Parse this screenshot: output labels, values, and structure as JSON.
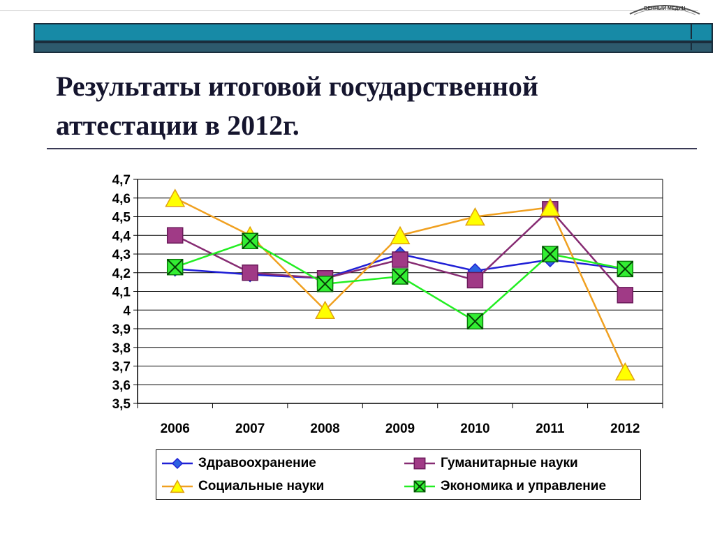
{
  "slide": {
    "title": "Результаты итоговой государственной\nаттестации в 2012г.",
    "logo_text": "ВЕННЫЙ МЕДИЦ"
  },
  "colors": {
    "banner_upper": "#178aa6",
    "banner_lower": "#2d5a6d",
    "title": "#15152e"
  },
  "chart_data": {
    "type": "line",
    "title": "",
    "xlabel": "",
    "ylabel": "",
    "categories": [
      "2006",
      "2007",
      "2008",
      "2009",
      "2010",
      "2011",
      "2012"
    ],
    "ylim": [
      3.5,
      4.7
    ],
    "ytick_step": 0.1,
    "yticks": [
      "3,5",
      "3,6",
      "3,7",
      "3,8",
      "3,9",
      "4",
      "4,1",
      "4,2",
      "4,3",
      "4,4",
      "4,5",
      "4,6",
      "4,7"
    ],
    "grid": true,
    "legend_position": "bottom",
    "series": [
      {
        "name": "Здравоохранение",
        "values": [
          4.22,
          4.19,
          4.17,
          4.3,
          4.21,
          4.27,
          4.22
        ],
        "color": "#1f1fd6",
        "marker": "diamond"
      },
      {
        "name": "Гуманитарные науки",
        "values": [
          4.4,
          4.2,
          4.17,
          4.27,
          4.16,
          4.54,
          4.08
        ],
        "color": "#862b72",
        "marker": "square"
      },
      {
        "name": "Социальные науки",
        "values": [
          4.6,
          4.4,
          4.0,
          4.4,
          4.5,
          4.55,
          3.67
        ],
        "color": "#f0a020",
        "marker": "triangle"
      },
      {
        "name": "Экономика и управление",
        "values": [
          4.23,
          4.37,
          4.14,
          4.18,
          3.94,
          4.3,
          4.22
        ],
        "color": "#22ee22",
        "marker": "xsquare"
      }
    ]
  }
}
